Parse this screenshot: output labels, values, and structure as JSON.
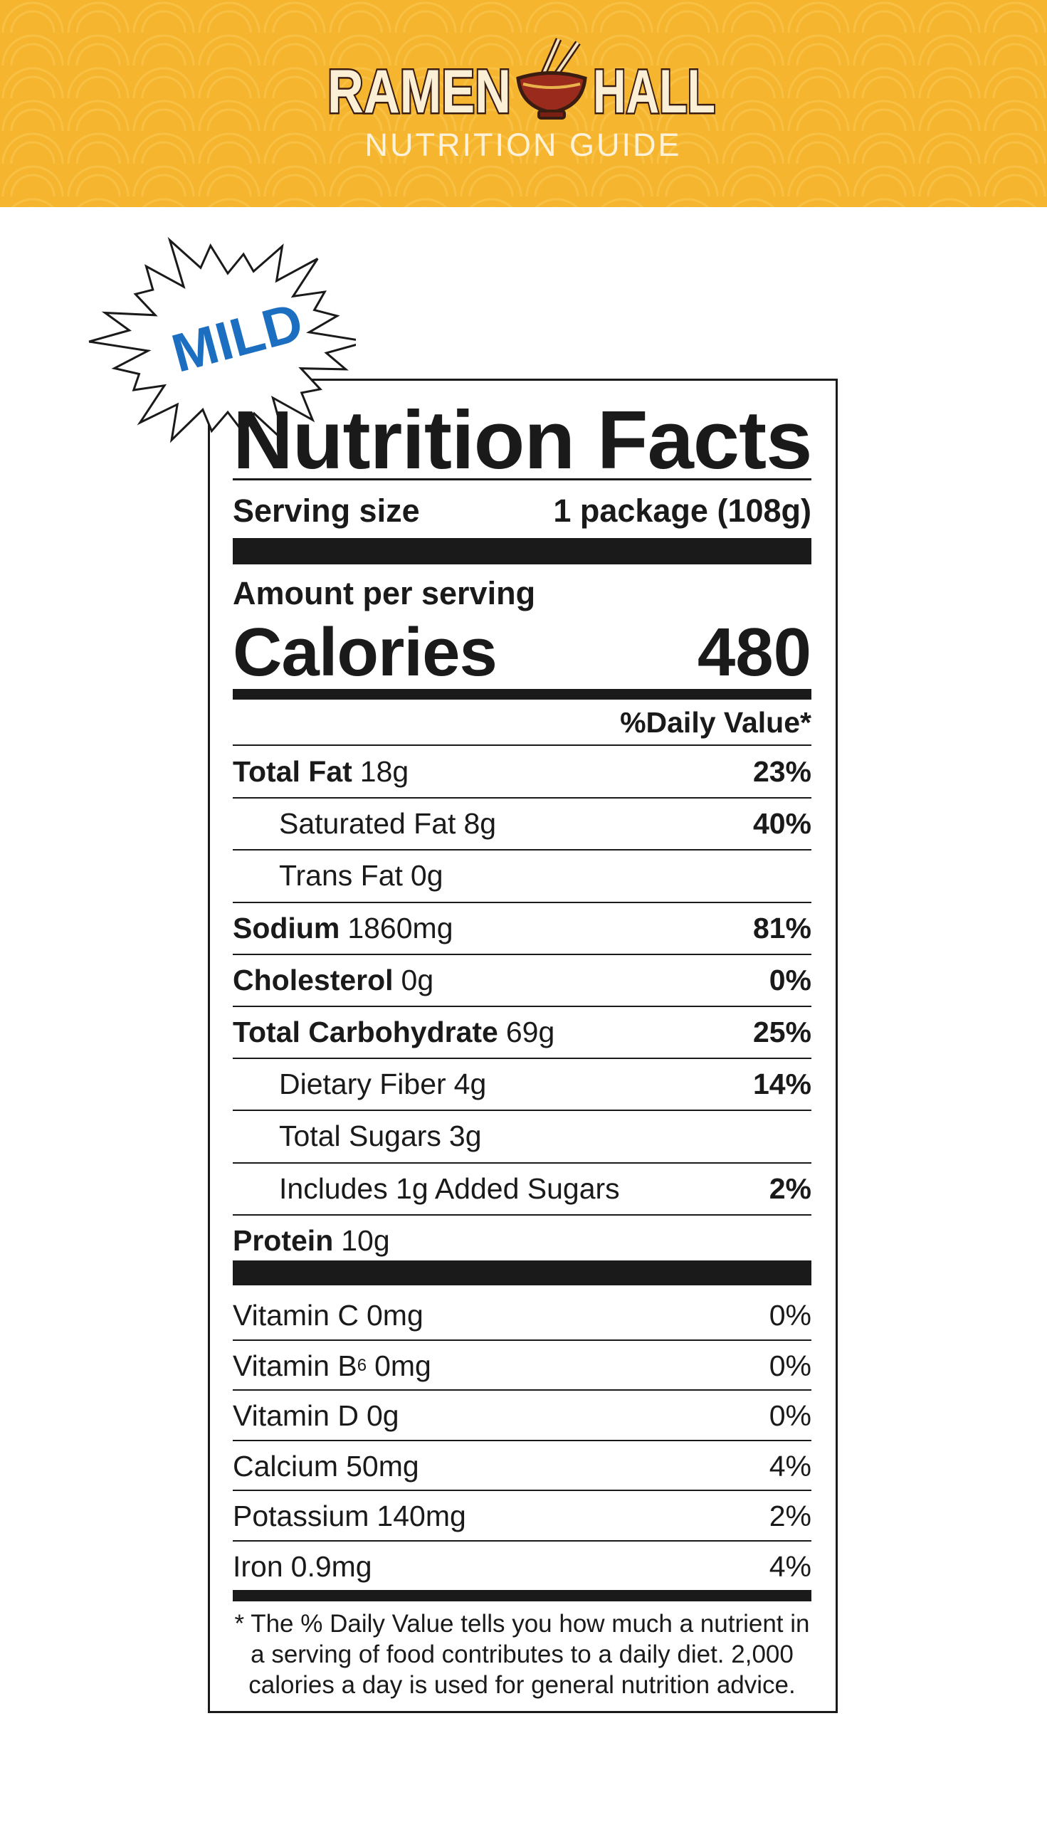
{
  "header": {
    "brand_left": "RAMEN",
    "brand_right": "HALL",
    "subtitle": "NUTRITION GUIDE"
  },
  "badge": "MILD",
  "label": {
    "title": "Nutrition Facts",
    "serving_size_label": "Serving size",
    "serving_size_value": "1 package (108g)",
    "amount_per_serving": "Amount per serving",
    "calories_label": "Calories",
    "calories_value": 480,
    "daily_value_header": "%Daily Value*",
    "nutrients": [
      {
        "name": "Total Fat",
        "amount": "18g",
        "dv": "23%",
        "sub": [
          {
            "name": "Saturated Fat",
            "amount": "8g",
            "dv": "40%"
          },
          {
            "name": "Trans Fat",
            "amount": "0g"
          }
        ]
      },
      {
        "name": "Sodium",
        "amount": "1860mg",
        "dv": "81%"
      },
      {
        "name": "Cholesterol",
        "amount": "0g",
        "dv": "0%"
      },
      {
        "name": "Total Carbohydrate",
        "amount": "69g",
        "dv": "25%",
        "sub": [
          {
            "name": "Dietary Fiber",
            "amount": "4g",
            "dv": "14%"
          },
          {
            "name": "Total Sugars",
            "amount": "3g"
          },
          {
            "name": "Includes 1g Added Sugars",
            "dv": "2%"
          }
        ]
      },
      {
        "name": "Protein",
        "amount": "10g"
      }
    ],
    "vitamins": [
      {
        "name": "Vitamin C",
        "amount": "0mg",
        "dv": "0%"
      },
      {
        "name": "Vitamin B",
        "subscript": "6",
        "amount": "0mg",
        "dv": "0%"
      },
      {
        "name": "Vitamin D",
        "amount": "0g",
        "dv": "0%"
      },
      {
        "name": "Calcium",
        "amount": "50mg",
        "dv": "4%"
      },
      {
        "name": "Potassium",
        "amount": "140mg",
        "dv": "2%"
      },
      {
        "name": "Iron",
        "amount": "0.9mg",
        "dv": "4%"
      }
    ],
    "footnote": "* The % Daily Value tells you how much a nutrient in a serving of food contributes to a daily diet. 2,000 calories a day is used for general nutrition advice."
  }
}
